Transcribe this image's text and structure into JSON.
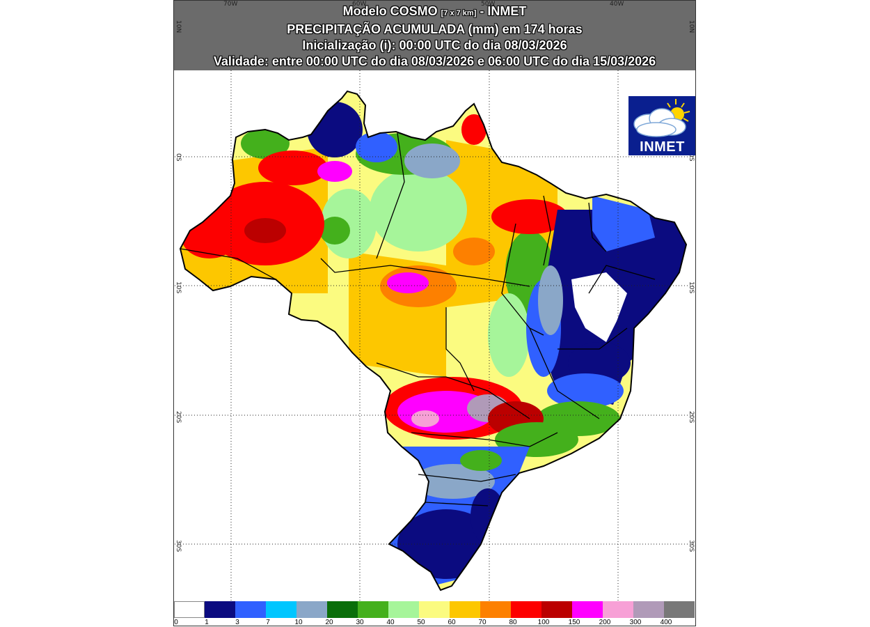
{
  "header": {
    "line1_a": "Modelo COSMO ",
    "line1_small": "[7 x 7 km]",
    "line1_b": " - INMET",
    "line2": "PRECIPITAÇÃO ACUMULADA (mm) em 174 horas",
    "line3": "Inicialização (i): 00:00 UTC do dia 08/03/2026",
    "line4": "Validade: entre 00:00 UTC do dia 08/03/2026 e 06:00 UTC do dia 15/03/2026"
  },
  "axes": {
    "lon_labels": [
      "70W",
      "60W",
      "50W",
      "40W"
    ],
    "lat_labels": [
      "10N",
      "0S",
      "10S",
      "20S",
      "30S"
    ]
  },
  "logo": {
    "text": "INMET",
    "icon": "cloud-sun-icon"
  },
  "legend": {
    "labels": [
      "0",
      "1",
      "3",
      "7",
      "10",
      "20",
      "30",
      "40",
      "50",
      "60",
      "70",
      "80",
      "100",
      "150",
      "200",
      "300",
      "400"
    ],
    "colors": [
      "#ffffff",
      "#0b0b80",
      "#3060ff",
      "#00c6ff",
      "#8aa7c8",
      "#0a6e0a",
      "#44b01c",
      "#a6f59a",
      "#fbfb80",
      "#fdc700",
      "#fd8000",
      "#fd0000",
      "#bb0000",
      "#ff00ff",
      "#f7a0d6",
      "#b09ab8",
      "#787878"
    ]
  },
  "regions": [
    {
      "name": "amazonas-west",
      "color": "#fdc700"
    },
    {
      "name": "amazonas-red-core",
      "color": "#fd0000"
    },
    {
      "name": "roraima-north",
      "color": "#0b0b80"
    },
    {
      "name": "para-central",
      "color": "#fbfb80"
    },
    {
      "name": "northeast-dry",
      "color": "#0b0b80"
    },
    {
      "name": "northeast-white",
      "color": "#ffffff"
    },
    {
      "name": "mato-grosso-do-sul-magenta",
      "color": "#ff00ff"
    },
    {
      "name": "south-blue",
      "color": "#0b0b80"
    },
    {
      "name": "southeast-green",
      "color": "#44b01c"
    }
  ]
}
